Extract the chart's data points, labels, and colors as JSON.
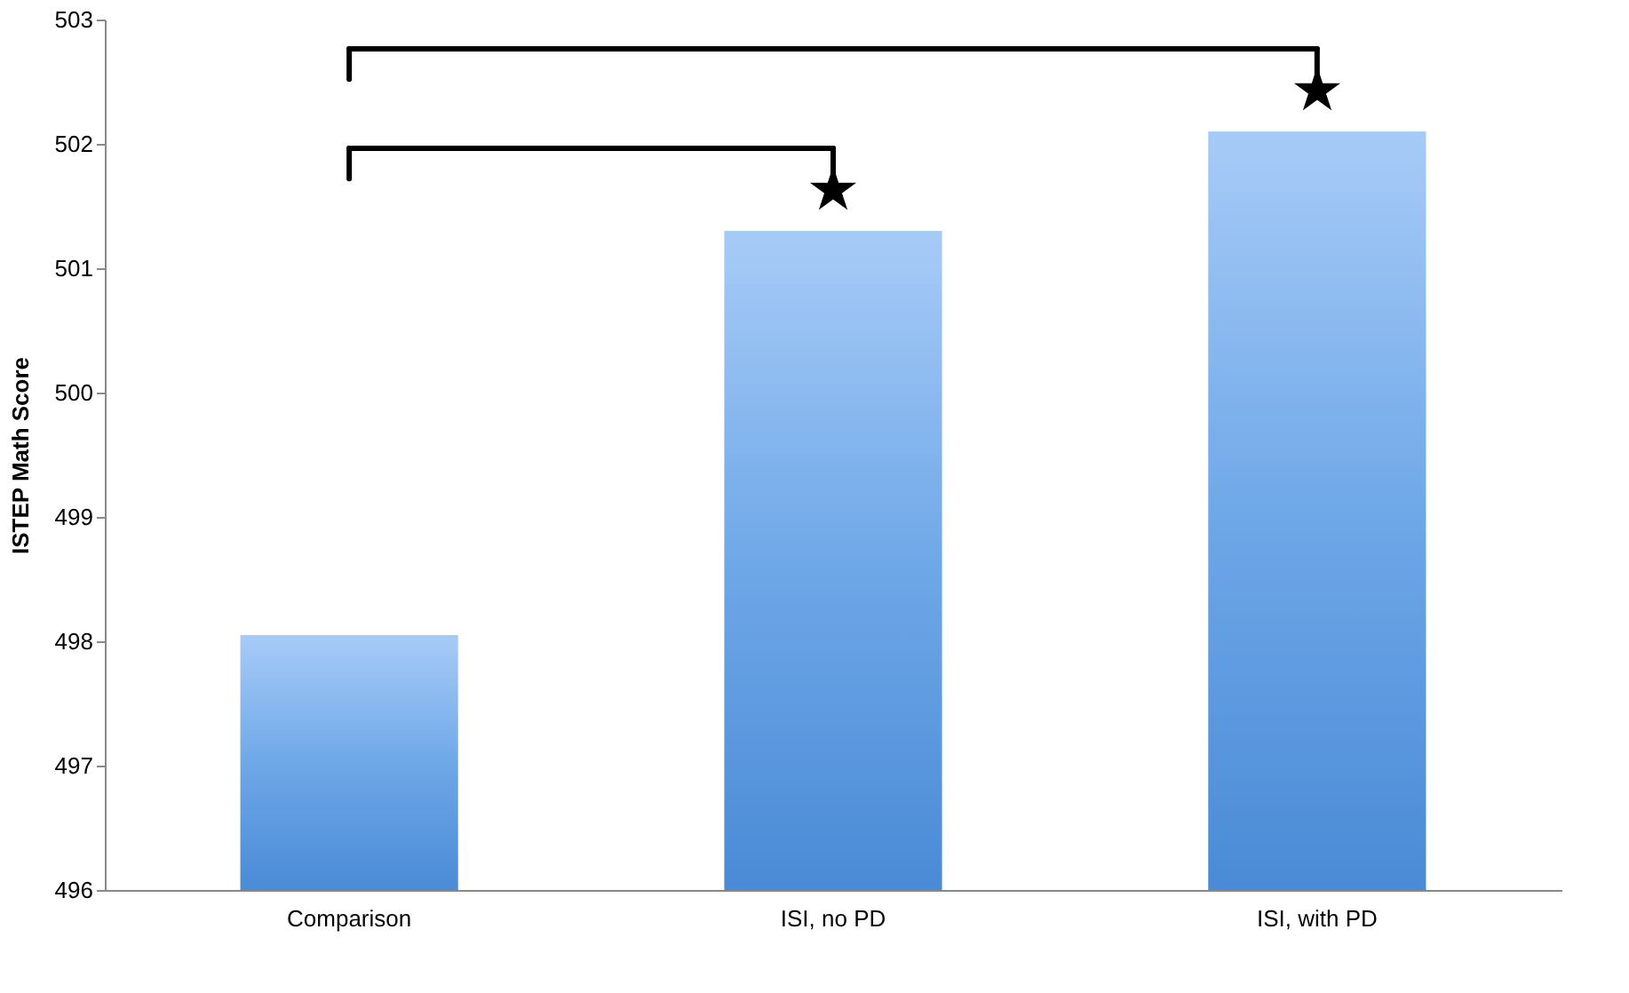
{
  "chart_data": {
    "type": "bar",
    "ylabel": "ISTEP Math Score",
    "categories": [
      "Comparison",
      "ISI, no PD",
      "ISI, with PD"
    ],
    "values": [
      498.05,
      501.3,
      502.1
    ],
    "color": "#6fa8e8",
    "ylim": [
      496,
      503
    ],
    "yticks": [
      496,
      497,
      498,
      499,
      500,
      501,
      502,
      503
    ],
    "grid": false,
    "annotations": [
      "★",
      "★"
    ]
  }
}
